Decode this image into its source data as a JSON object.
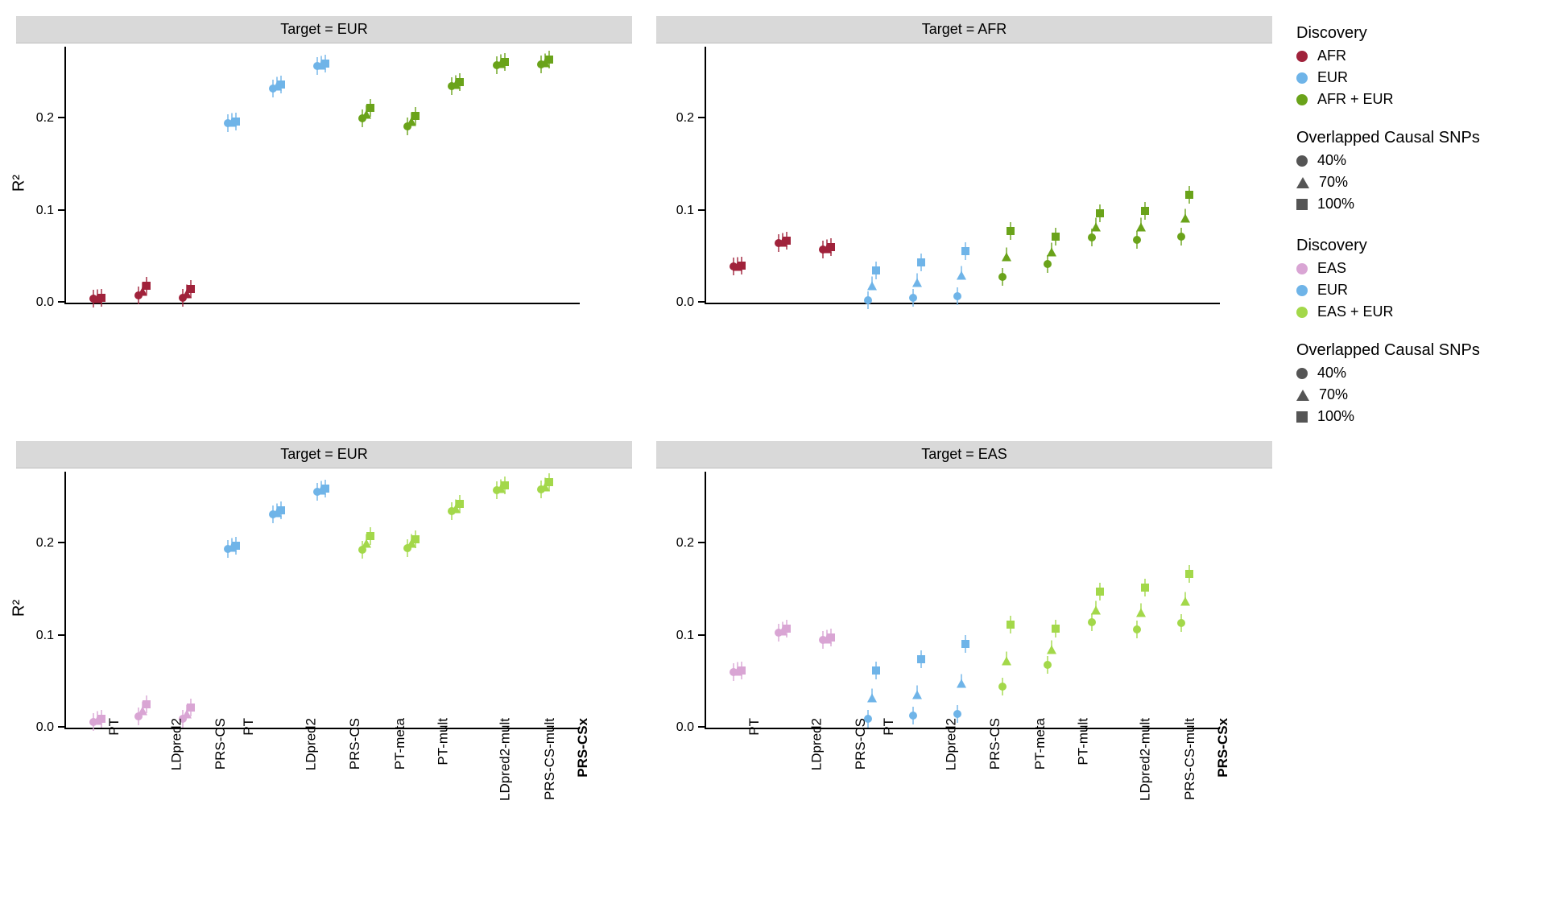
{
  "chart": {
    "type": "faceted-scatter",
    "background_color": "#ffffff",
    "strip_color": "#d9d9d9",
    "axis_color": "#000000",
    "font_family": "Helvetica Neue",
    "label_fontsize": 18,
    "title_fontsize": 20,
    "ylab": "R²",
    "ylim": [
      0.0,
      0.28
    ],
    "yticks": [
      0.0,
      0.1,
      0.2
    ],
    "ytick_labels": [
      "0.0",
      "0.1",
      "0.2"
    ],
    "methods": [
      "PT",
      "LDpred2",
      "PRS-CS",
      "PT",
      "LDpred2",
      "PRS-CS",
      "PT-meta",
      "PT-mult",
      "LDpred2-mult",
      "PRS-CS-mult",
      "PRS-CSx"
    ],
    "method_bold": [
      false,
      false,
      false,
      false,
      false,
      false,
      false,
      false,
      false,
      false,
      true
    ],
    "shapes": {
      "40%": "circle",
      "70%": "triangle",
      "100%": "square"
    },
    "colors_row1": {
      "AFR": "#a0223b",
      "EUR": "#6fb4e8",
      "AFR + EUR": "#6aa31a"
    },
    "colors_row2": {
      "EAS": "#d9a5d4",
      "EUR": "#6fb4e8",
      "EAS + EUR": "#a3d84a"
    },
    "rows": [
      {
        "legend_title": "Discovery",
        "legend_colors": [
          {
            "label": "AFR",
            "color": "#a0223b"
          },
          {
            "label": "EUR",
            "color": "#6fb4e8"
          },
          {
            "label": "AFR + EUR",
            "color": "#6aa31a"
          }
        ],
        "shape_title": "Overlapped Causal SNPs",
        "shape_legend": [
          {
            "label": "40%",
            "shape": "circle"
          },
          {
            "label": "70%",
            "shape": "triangle"
          },
          {
            "label": "100%",
            "shape": "square"
          }
        ],
        "panels": [
          {
            "title": "Target = EUR",
            "show_ylab": true,
            "show_xticks": false,
            "groups": [
              {
                "color": "#a0223b",
                "methods": [
                  0,
                  1,
                  2
                ],
                "values": {
                  "0": {
                    "40%": 0.004,
                    "70%": 0.004,
                    "100%": 0.005
                  },
                  "1": {
                    "40%": 0.008,
                    "70%": 0.012,
                    "100%": 0.018
                  },
                  "2": {
                    "40%": 0.005,
                    "70%": 0.01,
                    "100%": 0.015
                  }
                }
              },
              {
                "color": "#6fb4e8",
                "methods": [
                  3,
                  4,
                  5
                ],
                "values": {
                  "3": {
                    "40%": 0.195,
                    "70%": 0.196,
                    "100%": 0.197
                  },
                  "4": {
                    "40%": 0.233,
                    "70%": 0.235,
                    "100%": 0.237
                  },
                  "5": {
                    "40%": 0.257,
                    "70%": 0.258,
                    "100%": 0.26
                  }
                }
              },
              {
                "color": "#6aa31a",
                "methods": [
                  6,
                  7,
                  8,
                  9,
                  10
                ],
                "values": {
                  "6": {
                    "40%": 0.2,
                    "70%": 0.205,
                    "100%": 0.212
                  },
                  "7": {
                    "40%": 0.192,
                    "70%": 0.197,
                    "100%": 0.203
                  },
                  "8": {
                    "40%": 0.235,
                    "70%": 0.237,
                    "100%": 0.24
                  },
                  "9": {
                    "40%": 0.258,
                    "70%": 0.26,
                    "100%": 0.262
                  },
                  "10": {
                    "40%": 0.259,
                    "70%": 0.261,
                    "100%": 0.264
                  }
                }
              }
            ]
          },
          {
            "title": "Target = AFR",
            "show_ylab": false,
            "show_xticks": false,
            "groups": [
              {
                "color": "#a0223b",
                "methods": [
                  0,
                  1,
                  2
                ],
                "values": {
                  "0": {
                    "40%": 0.039,
                    "70%": 0.039,
                    "100%": 0.04
                  },
                  "1": {
                    "40%": 0.065,
                    "70%": 0.066,
                    "100%": 0.067
                  },
                  "2": {
                    "40%": 0.058,
                    "70%": 0.059,
                    "100%": 0.06
                  }
                }
              },
              {
                "color": "#6fb4e8",
                "methods": [
                  3,
                  4,
                  5
                ],
                "values": {
                  "3": {
                    "40%": 0.003,
                    "70%": 0.018,
                    "100%": 0.035
                  },
                  "4": {
                    "40%": 0.005,
                    "70%": 0.022,
                    "100%": 0.044
                  },
                  "5": {
                    "40%": 0.007,
                    "70%": 0.03,
                    "100%": 0.056
                  }
                }
              },
              {
                "color": "#6aa31a",
                "methods": [
                  6,
                  7,
                  8,
                  9,
                  10
                ],
                "values": {
                  "6": {
                    "40%": 0.028,
                    "70%": 0.05,
                    "100%": 0.078
                  },
                  "7": {
                    "40%": 0.042,
                    "70%": 0.055,
                    "100%": 0.072
                  },
                  "8": {
                    "40%": 0.071,
                    "70%": 0.082,
                    "100%": 0.097
                  },
                  "9": {
                    "40%": 0.068,
                    "70%": 0.082,
                    "100%": 0.1
                  },
                  "10": {
                    "40%": 0.072,
                    "70%": 0.092,
                    "100%": 0.117
                  }
                }
              }
            ]
          }
        ]
      },
      {
        "legend_title": "Discovery",
        "legend_colors": [
          {
            "label": "EAS",
            "color": "#d9a5d4"
          },
          {
            "label": "EUR",
            "color": "#6fb4e8"
          },
          {
            "label": "EAS + EUR",
            "color": "#a3d84a"
          }
        ],
        "shape_title": "Overlapped Causal SNPs",
        "shape_legend": [
          {
            "label": "40%",
            "shape": "circle"
          },
          {
            "label": "70%",
            "shape": "triangle"
          },
          {
            "label": "100%",
            "shape": "square"
          }
        ],
        "panels": [
          {
            "title": "Target = EUR",
            "show_ylab": true,
            "show_xticks": true,
            "groups": [
              {
                "color": "#d9a5d4",
                "methods": [
                  0,
                  1,
                  2
                ],
                "values": {
                  "0": {
                    "40%": 0.006,
                    "70%": 0.008,
                    "100%": 0.01
                  },
                  "1": {
                    "40%": 0.012,
                    "70%": 0.018,
                    "100%": 0.025
                  },
                  "2": {
                    "40%": 0.01,
                    "70%": 0.015,
                    "100%": 0.022
                  }
                }
              },
              {
                "color": "#6fb4e8",
                "methods": [
                  3,
                  4,
                  5
                ],
                "values": {
                  "3": {
                    "40%": 0.194,
                    "70%": 0.196,
                    "100%": 0.198
                  },
                  "4": {
                    "40%": 0.232,
                    "70%": 0.234,
                    "100%": 0.236
                  },
                  "5": {
                    "40%": 0.256,
                    "70%": 0.258,
                    "100%": 0.26
                  }
                }
              },
              {
                "color": "#a3d84a",
                "methods": [
                  6,
                  7,
                  8,
                  9,
                  10
                ],
                "values": {
                  "6": {
                    "40%": 0.193,
                    "70%": 0.2,
                    "100%": 0.208
                  },
                  "7": {
                    "40%": 0.195,
                    "70%": 0.2,
                    "100%": 0.205
                  },
                  "8": {
                    "40%": 0.235,
                    "70%": 0.238,
                    "100%": 0.243
                  },
                  "9": {
                    "40%": 0.258,
                    "70%": 0.26,
                    "100%": 0.263
                  },
                  "10": {
                    "40%": 0.259,
                    "70%": 0.262,
                    "100%": 0.267
                  }
                }
              }
            ]
          },
          {
            "title": "Target = EAS",
            "show_ylab": false,
            "show_xticks": true,
            "groups": [
              {
                "color": "#d9a5d4",
                "methods": [
                  0,
                  1,
                  2
                ],
                "values": {
                  "0": {
                    "40%": 0.06,
                    "70%": 0.061,
                    "100%": 0.062
                  },
                  "1": {
                    "40%": 0.103,
                    "70%": 0.105,
                    "100%": 0.108
                  },
                  "2": {
                    "40%": 0.095,
                    "70%": 0.096,
                    "100%": 0.098
                  }
                }
              },
              {
                "color": "#6fb4e8",
                "methods": [
                  3,
                  4,
                  5
                ],
                "values": {
                  "3": {
                    "40%": 0.01,
                    "70%": 0.032,
                    "100%": 0.062
                  },
                  "4": {
                    "40%": 0.013,
                    "70%": 0.036,
                    "100%": 0.074
                  },
                  "5": {
                    "40%": 0.015,
                    "70%": 0.048,
                    "100%": 0.091
                  }
                }
              },
              {
                "color": "#a3d84a",
                "methods": [
                  6,
                  7,
                  8,
                  9,
                  10
                ],
                "values": {
                  "6": {
                    "40%": 0.045,
                    "70%": 0.073,
                    "100%": 0.112
                  },
                  "7": {
                    "40%": 0.068,
                    "70%": 0.085,
                    "100%": 0.108
                  },
                  "8": {
                    "40%": 0.115,
                    "70%": 0.128,
                    "100%": 0.148
                  },
                  "9": {
                    "40%": 0.107,
                    "70%": 0.125,
                    "100%": 0.152
                  },
                  "10": {
                    "40%": 0.114,
                    "70%": 0.137,
                    "100%": 0.167
                  }
                }
              }
            ]
          }
        ]
      }
    ]
  }
}
